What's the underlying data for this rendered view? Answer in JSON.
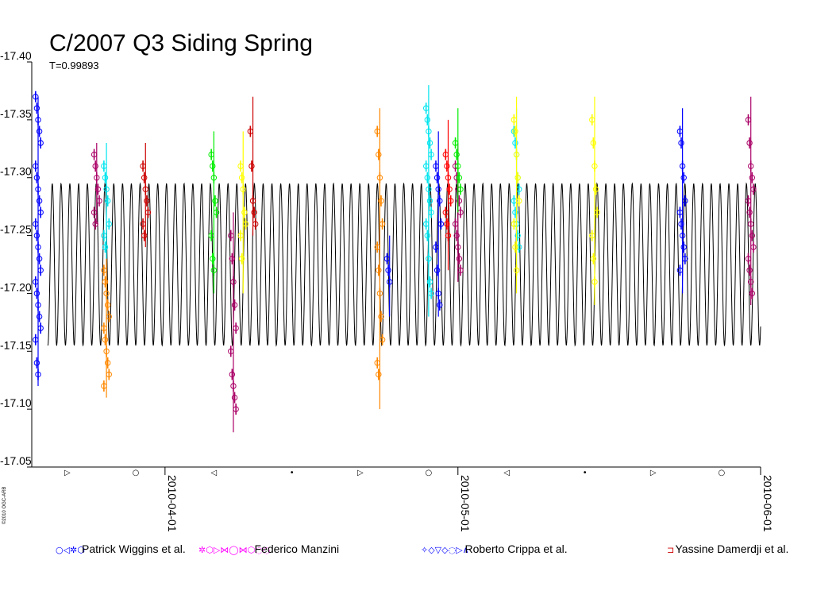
{
  "chart_data": {
    "type": "scatter",
    "title": "C/2007 Q3 Siding Spring",
    "subtitle": "T=0.99893",
    "copyright": "©2010 OGC-ARB",
    "y_axis": {
      "inverted": true,
      "range": [
        -17.4,
        -17.05
      ],
      "tick_values": [
        -17.4,
        -17.35,
        -17.3,
        -17.25,
        -17.2,
        -17.15,
        -17.1,
        -17.05
      ],
      "tick_labels": [
        "-17.40",
        "-17.35",
        "-17.30",
        "-17.25",
        "-17.20",
        "-17.15",
        "-17.10",
        "-17.05"
      ]
    },
    "x_axis": {
      "range": [
        "2010-03-19",
        "2010-06-01"
      ],
      "tick_labels": [
        "2010-04-01",
        "2010-05-01",
        "2010-06-01"
      ],
      "tick_dates": [
        "2010-04-01",
        "2010-05-01",
        "2010-06-01"
      ]
    },
    "model_curve": {
      "color": "#000000",
      "center": -17.225,
      "amplitude": 0.07,
      "period_days": 0.9,
      "start": "2010-03-20",
      "end": "2010-06-01"
    },
    "legend": [
      {
        "symbols": "○◁✲⬡",
        "label": "Patrick Wiggins et al.",
        "color": "#0000ff"
      },
      {
        "symbols": "✲⬡▷⋈◯⋈⬡◌◌",
        "label": "Federico Manzini",
        "color": "#ff00ff"
      },
      {
        "symbols": "✧◇▽◇◌▷∧",
        "label": "Roberto Crippa et al.",
        "color": "#0000ff"
      },
      {
        "symbols": "⊐",
        "label": "Yassine Damerdji et al.",
        "color": "#cc0000"
      }
    ],
    "series": [
      {
        "observer": "Patrick Wiggins et al.",
        "color": "#0000ff",
        "date": "2010-03-19",
        "mag_min": -17.37,
        "mag_max": -17.12,
        "points": [
          -17.37,
          -17.36,
          -17.35,
          -17.34,
          -17.33,
          -17.31,
          -17.3,
          -17.29,
          -17.28,
          -17.27,
          -17.26,
          -17.25,
          -17.24,
          -17.23,
          -17.22,
          -17.21,
          -17.2,
          -17.19,
          -17.18,
          -17.17,
          -17.16,
          -17.14,
          -17.13
        ]
      },
      {
        "observer": "Federico Manzini",
        "color": "#aa0066",
        "date": "2010-03-25",
        "mag_min": -17.33,
        "mag_max": -17.26,
        "points": [
          -17.32,
          -17.31,
          -17.3,
          -17.29,
          -17.28,
          -17.27,
          -17.26
        ]
      },
      {
        "observer": "Federico Manzini",
        "color": "#00e5ee",
        "date": "2010-03-26",
        "mag_min": -17.33,
        "mag_max": -17.23,
        "points": [
          -17.31,
          -17.3,
          -17.29,
          -17.28,
          -17.26,
          -17.25,
          -17.24
        ]
      },
      {
        "observer": "Patrick Wiggins et al.",
        "color": "#ff8800",
        "date": "2010-03-26",
        "mag_min": -17.23,
        "mag_max": -17.11,
        "points": [
          -17.22,
          -17.21,
          -17.2,
          -17.19,
          -17.18,
          -17.17,
          -17.16,
          -17.15,
          -17.14,
          -17.13,
          -17.12
        ]
      },
      {
        "observer": "Yassine Damerdji et al.",
        "color": "#cc0000",
        "date": "2010-03-30",
        "mag_min": -17.33,
        "mag_max": -17.24,
        "points": [
          -17.31,
          -17.3,
          -17.29,
          -17.28,
          -17.27,
          -17.26,
          -17.25
        ]
      },
      {
        "observer": "Federico Manzini",
        "color": "#00ee00",
        "date": "2010-04-06",
        "mag_min": -17.34,
        "mag_max": -17.2,
        "points": [
          -17.32,
          -17.31,
          -17.3,
          -17.28,
          -17.27,
          -17.25,
          -17.23,
          -17.22
        ]
      },
      {
        "observer": "Federico Manzini",
        "color": "#aa0066",
        "date": "2010-04-08",
        "mag_min": -17.27,
        "mag_max": -17.08,
        "points": [
          -17.25,
          -17.23,
          -17.21,
          -17.19,
          -17.17,
          -17.15,
          -17.13,
          -17.12,
          -17.11,
          -17.1
        ]
      },
      {
        "observer": "Federico Manzini",
        "color": "#ffff00",
        "date": "2010-04-09",
        "mag_min": -17.34,
        "mag_max": -17.2,
        "points": [
          -17.31,
          -17.3,
          -17.29,
          -17.27,
          -17.26,
          -17.25,
          -17.23
        ]
      },
      {
        "observer": "Yassine Damerdji et al.",
        "color": "#cc0000",
        "date": "2010-04-10",
        "mag_min": -17.37,
        "mag_max": -17.25,
        "points": [
          -17.34,
          -17.31,
          -17.28,
          -17.27,
          -17.26
        ]
      },
      {
        "observer": "Patrick Wiggins et al.",
        "color": "#ff8800",
        "date": "2010-04-23",
        "mag_min": -17.36,
        "mag_max": -17.1,
        "points": [
          -17.34,
          -17.32,
          -17.3,
          -17.28,
          -17.26,
          -17.24,
          -17.22,
          -17.2,
          -17.18,
          -17.16,
          -17.14,
          -17.13
        ]
      },
      {
        "observer": "Patrick Wiggins et al.",
        "color": "#0000ff",
        "date": "2010-04-24",
        "mag_min": -17.25,
        "mag_max": -17.18,
        "points": [
          -17.23,
          -17.22,
          -17.21
        ]
      },
      {
        "observer": "Federico Manzini",
        "color": "#00e5ee",
        "date": "2010-04-28",
        "mag_min": -17.38,
        "mag_max": -17.18,
        "points": [
          -17.36,
          -17.35,
          -17.34,
          -17.33,
          -17.32,
          -17.31,
          -17.3,
          -17.29,
          -17.28,
          -17.27,
          -17.26,
          -17.25,
          -17.23,
          -17.21,
          -17.2
        ]
      },
      {
        "observer": "Roberto Crippa et al.",
        "color": "#0000ff",
        "date": "2010-04-29",
        "mag_min": -17.34,
        "mag_max": -17.18,
        "points": [
          -17.31,
          -17.3,
          -17.29,
          -17.28,
          -17.26,
          -17.24,
          -17.22,
          -17.2,
          -17.19
        ]
      },
      {
        "observer": "Yassine Damerdji et al.",
        "color": "#ff0000",
        "date": "2010-04-30",
        "mag_min": -17.35,
        "mag_max": -17.22,
        "points": [
          -17.32,
          -17.31,
          -17.3,
          -17.29,
          -17.28,
          -17.27,
          -17.26,
          -17.25
        ]
      },
      {
        "observer": "Federico Manzini",
        "color": "#aa0066",
        "date": "2010-05-01",
        "mag_min": -17.33,
        "mag_max": -17.21,
        "points": [
          -17.31,
          -17.3,
          -17.29,
          -17.28,
          -17.27,
          -17.26,
          -17.25,
          -17.24,
          -17.23,
          -17.22
        ]
      },
      {
        "observer": "Federico Manzini",
        "color": "#00ee00",
        "date": "2010-05-01",
        "mag_min": -17.36,
        "mag_max": -17.27,
        "points": [
          -17.33,
          -17.32,
          -17.31,
          -17.3,
          -17.29
        ]
      },
      {
        "observer": "Federico Manzini",
        "color": "#00e5ee",
        "date": "2010-05-07",
        "mag_min": -17.36,
        "mag_max": -17.22,
        "points": [
          -17.34,
          -17.33,
          -17.32,
          -17.3,
          -17.29,
          -17.28,
          -17.27,
          -17.26,
          -17.25,
          -17.24
        ]
      },
      {
        "observer": "Federico Manzini",
        "color": "#ffff00",
        "date": "2010-05-07",
        "mag_min": -17.37,
        "mag_max": -17.2,
        "points": [
          -17.35,
          -17.34,
          -17.32,
          -17.3,
          -17.28,
          -17.26,
          -17.24,
          -17.22
        ]
      },
      {
        "observer": "Federico Manzini",
        "color": "#ffff00",
        "date": "2010-05-15",
        "mag_min": -17.37,
        "mag_max": -17.19,
        "points": [
          -17.35,
          -17.33,
          -17.31,
          -17.29,
          -17.27,
          -17.25,
          -17.23,
          -17.21
        ]
      },
      {
        "observer": "Roberto Crippa et al.",
        "color": "#0000ff",
        "date": "2010-05-24",
        "mag_min": -17.36,
        "mag_max": -17.2,
        "points": [
          -17.34,
          -17.33,
          -17.31,
          -17.3,
          -17.28,
          -17.27,
          -17.26,
          -17.25,
          -17.24,
          -17.23,
          -17.22
        ]
      },
      {
        "observer": "Federico Manzini",
        "color": "#aa0066",
        "date": "2010-05-31",
        "mag_min": -17.37,
        "mag_max": -17.19,
        "points": [
          -17.35,
          -17.33,
          -17.31,
          -17.3,
          -17.29,
          -17.28,
          -17.27,
          -17.26,
          -17.25,
          -17.24,
          -17.23,
          -17.22,
          -17.21,
          -17.2
        ]
      }
    ],
    "moon_phase_markers": [
      {
        "date": "2010-03-22",
        "glyph": "▷"
      },
      {
        "date": "2010-03-29",
        "glyph": "○"
      },
      {
        "date": "2010-04-06",
        "glyph": "◁"
      },
      {
        "date": "2010-04-14",
        "glyph": "•"
      },
      {
        "date": "2010-04-21",
        "glyph": "▷"
      },
      {
        "date": "2010-04-28",
        "glyph": "○"
      },
      {
        "date": "2010-05-06",
        "glyph": "◁"
      },
      {
        "date": "2010-05-14",
        "glyph": "•"
      },
      {
        "date": "2010-05-21",
        "glyph": "▷"
      },
      {
        "date": "2010-05-28",
        "glyph": "○"
      }
    ]
  }
}
